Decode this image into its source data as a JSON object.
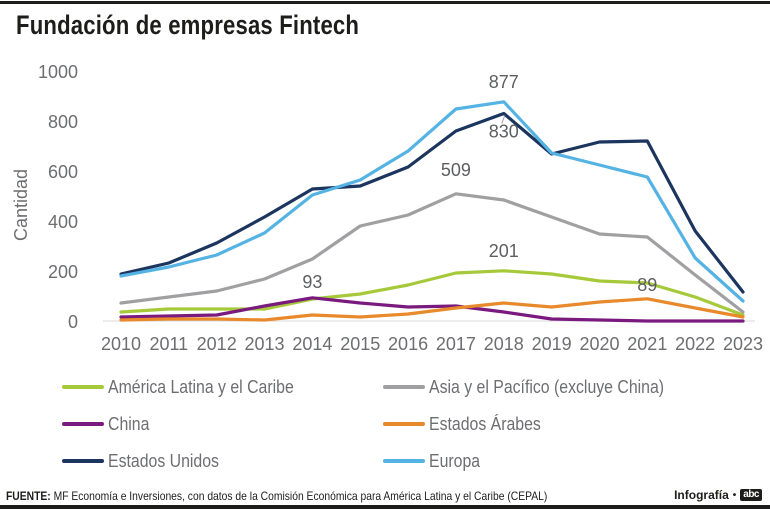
{
  "title": "Fundación de empresas Fintech",
  "footer": {
    "source_label": "FUENTE:",
    "source_text": "MF Economía e Inversiones, con datos de la Comisión Económica para América Latina y el Caribe (CEPAL)",
    "credit": "Infografía",
    "logo": "abc"
  },
  "chart_data": {
    "type": "line",
    "title": "Fundación de empresas Fintech",
    "xlabel": "",
    "ylabel": "Cantidad",
    "ylim": [
      0,
      1000
    ],
    "yticks": [
      0,
      200,
      400,
      600,
      800,
      1000
    ],
    "grid": false,
    "legend_position": "bottom",
    "x": [
      2010,
      2011,
      2012,
      2013,
      2014,
      2015,
      2016,
      2017,
      2018,
      2019,
      2020,
      2021,
      2022,
      2023
    ],
    "series": [
      {
        "name": "América Latina y el Caribe",
        "color": "#a6c93a",
        "values": [
          36,
          48,
          48,
          48,
          88,
          108,
          144,
          192,
          201,
          188,
          160,
          152,
          96,
          24
        ]
      },
      {
        "name": "Asia y el Pacífico (excluye China)",
        "color": "#a0a0a2",
        "values": [
          72,
          96,
          120,
          168,
          248,
          380,
          424,
          509,
          484,
          416,
          348,
          336,
          184,
          36
        ]
      },
      {
        "name": "China",
        "color": "#7a1a7e",
        "values": [
          16,
          20,
          24,
          60,
          93,
          72,
          56,
          60,
          36,
          8,
          4,
          0,
          0,
          0
        ]
      },
      {
        "name": "Estados Árabes",
        "color": "#e8892b",
        "values": [
          4,
          8,
          8,
          4,
          24,
          16,
          28,
          52,
          72,
          56,
          76,
          89,
          52,
          16
        ]
      },
      {
        "name": "Estados Unidos",
        "color": "#1b355f",
        "values": [
          188,
          232,
          312,
          416,
          528,
          540,
          616,
          760,
          830,
          668,
          716,
          720,
          360,
          116
        ]
      },
      {
        "name": "Europa",
        "color": "#55b3e3",
        "values": [
          180,
          216,
          264,
          352,
          504,
          564,
          680,
          848,
          877,
          672,
          624,
          576,
          252,
          80
        ]
      }
    ],
    "annotations": [
      {
        "series": "China",
        "x": 2014,
        "text": "93"
      },
      {
        "series": "Asia y el Pacífico (excluye China)",
        "x": 2017,
        "text": "509"
      },
      {
        "series": "Europa",
        "x": 2018,
        "text": "877"
      },
      {
        "series": "Estados Unidos",
        "x": 2018,
        "text": "830"
      },
      {
        "series": "América Latina y el Caribe",
        "x": 2018,
        "text": "201"
      },
      {
        "series": "Estados Árabes",
        "x": 2021,
        "text": "89"
      }
    ]
  }
}
